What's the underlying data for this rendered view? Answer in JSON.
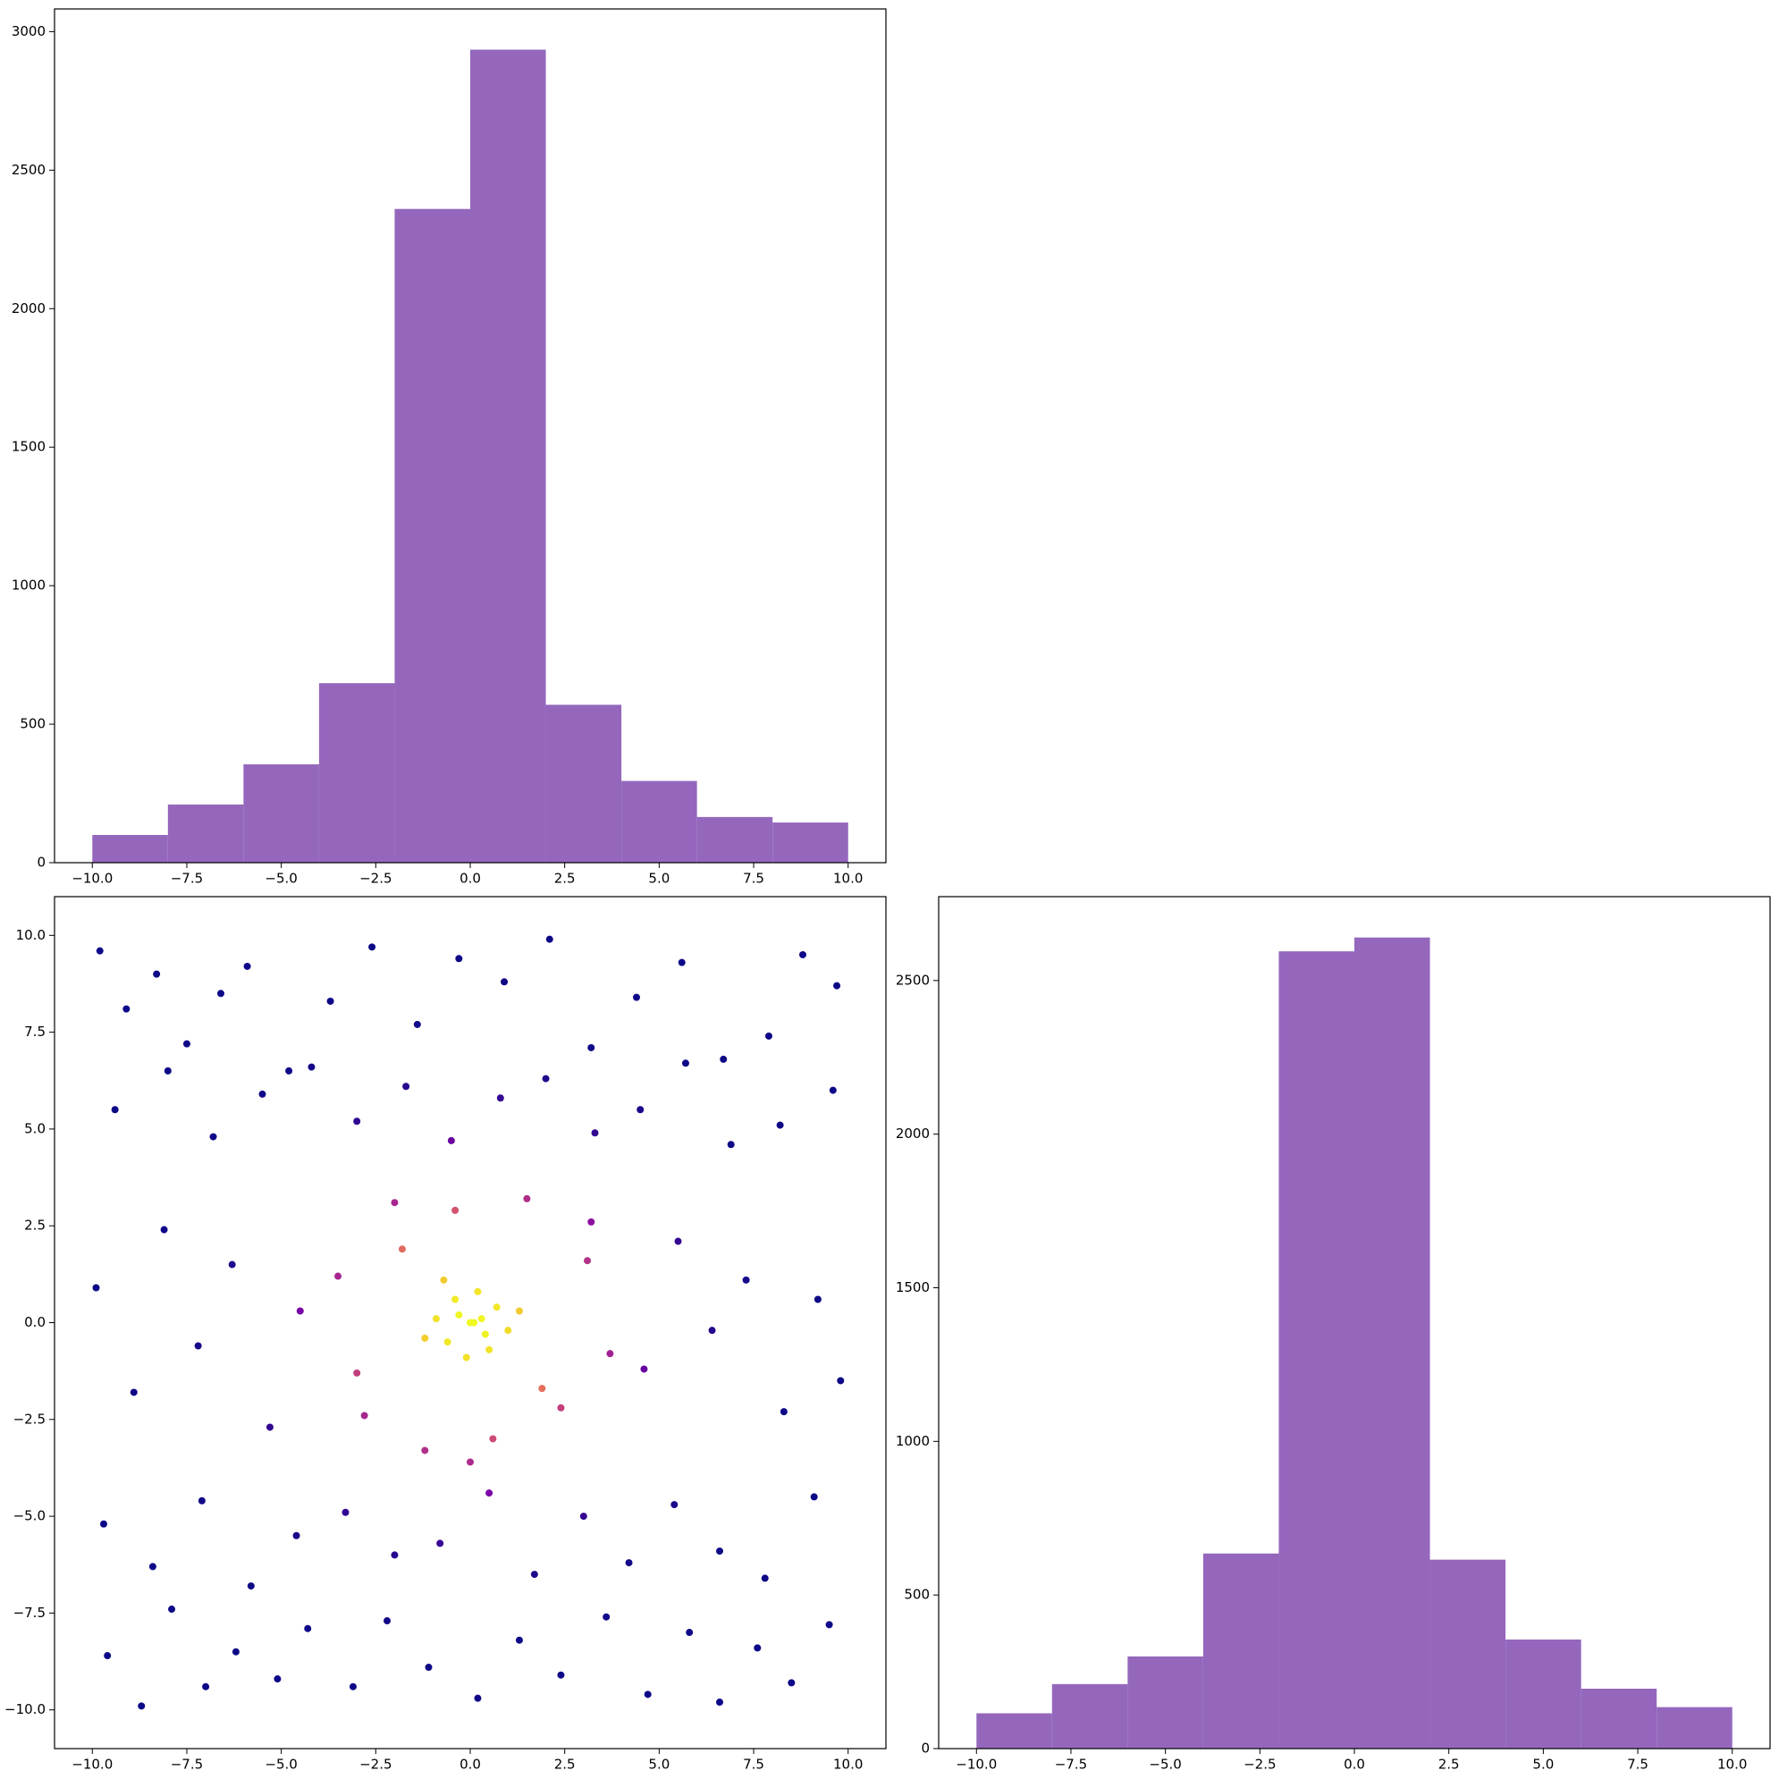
{
  "chart_data": [
    {
      "type": "histogram",
      "bins": [
        -10,
        -8,
        -6,
        -4,
        -2,
        0,
        2,
        4,
        6,
        8,
        10
      ],
      "values": [
        100,
        210,
        355,
        648,
        2360,
        2935,
        570,
        295,
        165,
        145
      ],
      "color": "#9467bd",
      "xlim": [
        -11,
        11
      ],
      "ylim": [
        0,
        3082
      ],
      "xticks": [
        {
          "value": -10,
          "label": "−10.0"
        },
        {
          "value": -7.5,
          "label": "−7.5"
        },
        {
          "value": -5,
          "label": "−5.0"
        },
        {
          "value": -2.5,
          "label": "−2.5"
        },
        {
          "value": 0,
          "label": "0.0"
        },
        {
          "value": 2.5,
          "label": "2.5"
        },
        {
          "value": 5,
          "label": "5.0"
        },
        {
          "value": 7.5,
          "label": "7.5"
        },
        {
          "value": 10,
          "label": "10.0"
        }
      ],
      "yticks": [
        0,
        500,
        1000,
        1500,
        2000,
        2500,
        3000
      ]
    },
    {
      "type": "scatter",
      "x": [
        -9.8,
        -9.1,
        -8.3,
        -7.5,
        -6.6,
        -5.9,
        -4.8,
        -3.7,
        -2.6,
        -1.4,
        -0.3,
        0.9,
        2.1,
        3.2,
        4.4,
        5.6,
        6.7,
        7.9,
        8.8,
        9.7,
        -9.6,
        -8.7,
        -7.9,
        -7.0,
        -6.2,
        -5.1,
        -4.3,
        -3.1,
        -2.2,
        -1.1,
        0.2,
        1.3,
        2.4,
        3.6,
        4.7,
        5.8,
        6.6,
        7.6,
        8.5,
        9.5,
        -9.4,
        -8.0,
        -6.8,
        -5.5,
        -4.2,
        -3.0,
        -1.7,
        -0.5,
        0.8,
        2.0,
        3.3,
        4.5,
        5.7,
        6.9,
        8.2,
        9.6,
        -9.7,
        -8.4,
        -7.1,
        -5.8,
        -4.6,
        -3.3,
        -2.0,
        -0.8,
        0.5,
        1.7,
        3.0,
        4.2,
        5.4,
        6.6,
        7.8,
        9.1,
        -9.9,
        -8.9,
        -8.1,
        -7.2,
        -6.3,
        -5.3,
        -4.5,
        4.6,
        5.5,
        6.4,
        7.3,
        8.3,
        9.2,
        9.8,
        -3.5,
        -2.8,
        -2.0,
        -1.2,
        -0.4,
        0.6,
        1.5,
        2.4,
        3.1,
        3.7,
        -3.0,
        -1.8,
        0.0,
        1.9,
        3.2,
        0.1,
        -0.3,
        0.4,
        -0.6,
        0.7,
        -0.9,
        1.0,
        0.2,
        -0.1,
        0.5,
        -0.4,
        1.3,
        -1.2,
        0.0,
        0.3,
        -0.7
      ],
      "y": [
        9.6,
        8.1,
        9.0,
        7.2,
        8.5,
        9.2,
        6.5,
        8.3,
        9.7,
        7.7,
        9.4,
        8.8,
        9.9,
        7.1,
        8.4,
        9.3,
        6.8,
        7.4,
        9.5,
        8.7,
        -8.6,
        -9.9,
        -7.4,
        -9.4,
        -8.5,
        -9.2,
        -7.9,
        -9.4,
        -7.7,
        -8.9,
        -9.7,
        -8.2,
        -9.1,
        -7.6,
        -9.6,
        -8.0,
        -9.8,
        -8.4,
        -9.3,
        -7.8,
        5.5,
        6.5,
        4.8,
        5.9,
        6.6,
        5.2,
        6.1,
        4.7,
        5.8,
        6.3,
        4.9,
        5.5,
        6.7,
        4.6,
        5.1,
        6.0,
        -5.2,
        -6.3,
        -4.6,
        -6.8,
        -5.5,
        -4.9,
        -6.0,
        -5.7,
        -4.4,
        -6.5,
        -5.0,
        -6.2,
        -4.7,
        -5.9,
        -6.6,
        -4.5,
        0.9,
        -1.8,
        2.4,
        -0.6,
        1.5,
        -2.7,
        0.3,
        -1.2,
        2.1,
        -0.2,
        1.1,
        -2.3,
        0.6,
        -1.5,
        1.2,
        -2.4,
        3.1,
        -3.3,
        2.9,
        -3.0,
        3.2,
        -2.2,
        1.6,
        -0.8,
        -1.3,
        1.9,
        -3.6,
        -1.7,
        2.6,
        0.0,
        0.2,
        -0.3,
        -0.5,
        0.4,
        0.1,
        -0.2,
        0.8,
        -0.9,
        -0.7,
        0.6,
        0.3,
        -0.4,
        0.0,
        0.1,
        1.1
      ],
      "xlim": [
        -11,
        11
      ],
      "ylim": [
        -11,
        11
      ],
      "xticks": [
        {
          "value": -10,
          "label": "−10.0"
        },
        {
          "value": -7.5,
          "label": "−7.5"
        },
        {
          "value": -5,
          "label": "−5.0"
        },
        {
          "value": -2.5,
          "label": "−2.5"
        },
        {
          "value": 0,
          "label": "0.0"
        },
        {
          "value": 2.5,
          "label": "2.5"
        },
        {
          "value": 5,
          "label": "5.0"
        },
        {
          "value": 7.5,
          "label": "7.5"
        },
        {
          "value": 10,
          "label": "10.0"
        }
      ],
      "yticks": [
        {
          "value": -10,
          "label": "−10.0"
        },
        {
          "value": -7.5,
          "label": "−7.5"
        },
        {
          "value": -5,
          "label": "−5.0"
        },
        {
          "value": -2.5,
          "label": "−2.5"
        },
        {
          "value": 0,
          "label": "0.0"
        },
        {
          "value": 2.5,
          "label": "2.5"
        },
        {
          "value": 5,
          "label": "5.0"
        },
        {
          "value": 7.5,
          "label": "7.5"
        },
        {
          "value": 10,
          "label": "10.0"
        }
      ]
    },
    {
      "type": "histogram",
      "bins": [
        -10,
        -8,
        -6,
        -4,
        -2,
        0,
        2,
        4,
        6,
        8,
        10
      ],
      "values": [
        115,
        210,
        300,
        635,
        2595,
        2640,
        615,
        355,
        195,
        135
      ],
      "color": "#9467bd",
      "xlim": [
        -11,
        11
      ],
      "ylim": [
        0,
        2773
      ],
      "xticks": [
        {
          "value": -10,
          "label": "−10.0"
        },
        {
          "value": -7.5,
          "label": "−7.5"
        },
        {
          "value": -5,
          "label": "−5.0"
        },
        {
          "value": -2.5,
          "label": "−2.5"
        },
        {
          "value": 0,
          "label": "0.0"
        },
        {
          "value": 2.5,
          "label": "2.5"
        },
        {
          "value": 5,
          "label": "5.0"
        },
        {
          "value": 7.5,
          "label": "7.5"
        },
        {
          "value": 10,
          "label": "10.0"
        }
      ],
      "yticks": [
        0,
        500,
        1000,
        1500,
        2000,
        2500
      ]
    }
  ]
}
